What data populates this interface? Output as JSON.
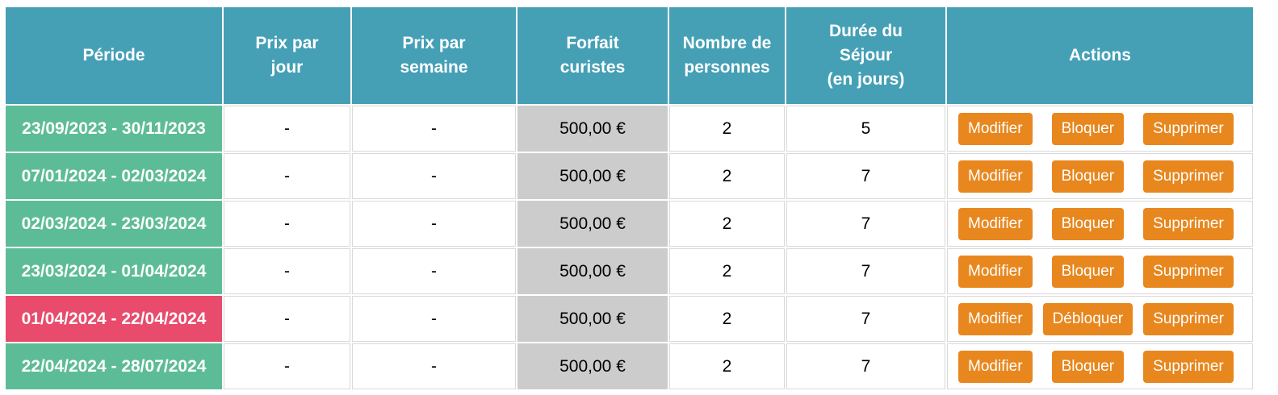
{
  "headers": {
    "periode": "Période",
    "prix_jour_1": "Prix par",
    "prix_jour_2": "jour",
    "prix_semaine_1": "Prix par",
    "prix_semaine_2": "semaine",
    "forfait_1": "Forfait",
    "forfait_2": "curistes",
    "nombre_1": "Nombre de",
    "nombre_2": "personnes",
    "duree_1": "Durée du",
    "duree_2": "Séjour",
    "duree_3": "(en jours)",
    "actions": "Actions"
  },
  "colors": {
    "header": "#45a0b6",
    "period_open": "#5dbc98",
    "period_blocked": "#e84b6b",
    "button": "#e8871e",
    "forfait_cell": "#cccccc"
  },
  "rows": [
    {
      "periode": "23/09/2023 - 30/11/2023",
      "status": "open",
      "prix_jour": "-",
      "prix_semaine": "-",
      "forfait": "500,00 €",
      "personnes": "2",
      "duree": "5",
      "btn_modifier": "Modifier",
      "btn_block": "Bloquer",
      "btn_supprimer": "Supprimer"
    },
    {
      "periode": "07/01/2024 - 02/03/2024",
      "status": "open",
      "prix_jour": "-",
      "prix_semaine": "-",
      "forfait": "500,00 €",
      "personnes": "2",
      "duree": "7",
      "btn_modifier": "Modifier",
      "btn_block": "Bloquer",
      "btn_supprimer": "Supprimer"
    },
    {
      "periode": "02/03/2024 - 23/03/2024",
      "status": "open",
      "prix_jour": "-",
      "prix_semaine": "-",
      "forfait": "500,00 €",
      "personnes": "2",
      "duree": "7",
      "btn_modifier": "Modifier",
      "btn_block": "Bloquer",
      "btn_supprimer": "Supprimer"
    },
    {
      "periode": "23/03/2024 - 01/04/2024",
      "status": "open",
      "prix_jour": "-",
      "prix_semaine": "-",
      "forfait": "500,00 €",
      "personnes": "2",
      "duree": "7",
      "btn_modifier": "Modifier",
      "btn_block": "Bloquer",
      "btn_supprimer": "Supprimer"
    },
    {
      "periode": "01/04/2024 - 22/04/2024",
      "status": "blocked",
      "prix_jour": "-",
      "prix_semaine": "-",
      "forfait": "500,00 €",
      "personnes": "2",
      "duree": "7",
      "btn_modifier": "Modifier",
      "btn_block": "Débloquer",
      "btn_supprimer": "Supprimer"
    },
    {
      "periode": "22/04/2024 - 28/07/2024",
      "status": "open",
      "prix_jour": "-",
      "prix_semaine": "-",
      "forfait": "500,00 €",
      "personnes": "2",
      "duree": "7",
      "btn_modifier": "Modifier",
      "btn_block": "Bloquer",
      "btn_supprimer": "Supprimer"
    }
  ]
}
